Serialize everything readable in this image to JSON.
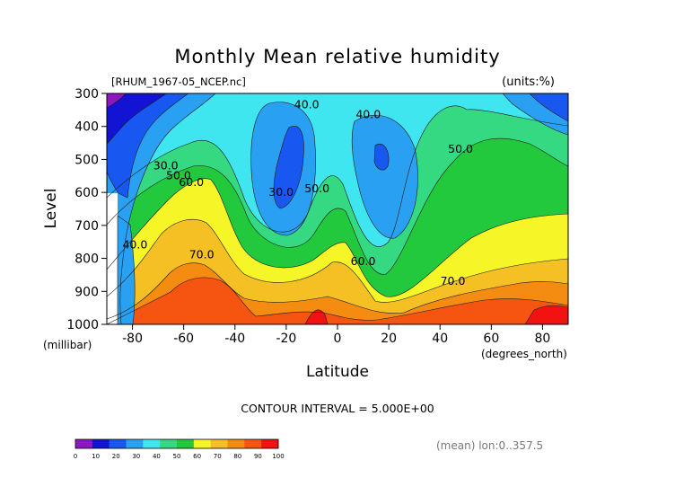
{
  "chart_data": {
    "type": "contour",
    "title": "Monthly Mean relative humidity",
    "file_label": "[RHUM_1967-05_NCEP.nc]",
    "units_label": "(units:%)",
    "ylabel": "Level",
    "yunit": "(millibar)",
    "xlabel": "Latitude",
    "xunit": "(degrees_north)",
    "xlim": [
      -90,
      90
    ],
    "ylim": [
      1000,
      300
    ],
    "x_ticks": [
      -80,
      -60,
      -40,
      -20,
      0,
      20,
      40,
      60,
      80
    ],
    "y_ticks": [
      300,
      400,
      500,
      600,
      700,
      800,
      900,
      1000
    ],
    "contour_interval_text": "CONTOUR INTERVAL = 5.000E+00",
    "footer_text": "(mean) lon:0..357.5",
    "contour_labels": [
      {
        "text": "40.0",
        "lat": -12,
        "lev": 345
      },
      {
        "text": "40.0",
        "lat": 12,
        "lev": 375
      },
      {
        "text": "30.0",
        "lat": -67,
        "lev": 530
      },
      {
        "text": "50.0",
        "lat": -62,
        "lev": 560
      },
      {
        "text": "60.0",
        "lat": -57,
        "lev": 580
      },
      {
        "text": "30.0",
        "lat": -22,
        "lev": 610
      },
      {
        "text": "50.0",
        "lat": -8,
        "lev": 600
      },
      {
        "text": "50.0",
        "lat": 48,
        "lev": 480
      },
      {
        "text": "40.0",
        "lat": -79,
        "lev": 770
      },
      {
        "text": "70.0",
        "lat": -53,
        "lev": 800
      },
      {
        "text": "60.0",
        "lat": 10,
        "lev": 820
      },
      {
        "text": "70.0",
        "lat": 45,
        "lev": 880
      }
    ],
    "colorbar": {
      "ticks": [
        "0",
        "10",
        "20",
        "30",
        "40",
        "50",
        "60",
        "70",
        "80",
        "90",
        "100"
      ],
      "colors": [
        "#8a19c2",
        "#1313d4",
        "#1958f0",
        "#29a0f2",
        "#3fe6f0",
        "#34d982",
        "#22c93c",
        "#f5f528",
        "#f5c023",
        "#f58c12",
        "#f55511",
        "#f21212"
      ]
    },
    "colors": {
      "c5": "#8a19c2",
      "c10": "#1313d4",
      "c20": "#1958f0",
      "c30": "#29a0f2",
      "c40": "#3fe6f0",
      "c50": "#34d982",
      "c55": "#22c93c",
      "c60": "#f5f528",
      "c70": "#f5c023",
      "c75": "#f58c12",
      "c80": "#f55511",
      "c85": "#f21212",
      "c90": "#d90a0a",
      "c100": "#c00000"
    }
  }
}
